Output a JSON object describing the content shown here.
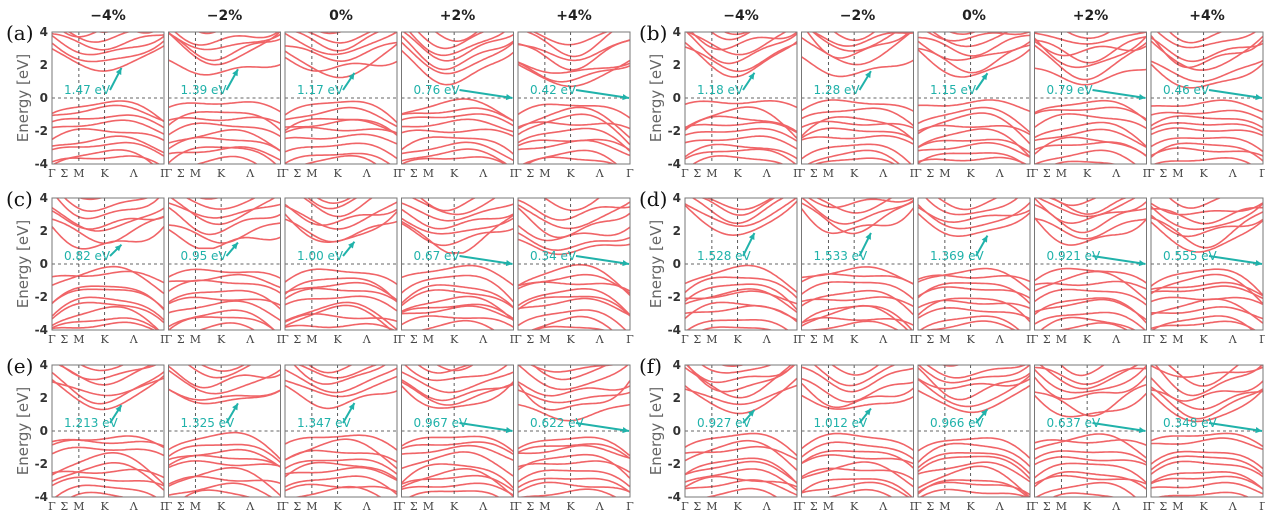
{
  "chart_data": {
    "type": "line",
    "ylabel": "Energy [eV]",
    "ylim": [
      -4,
      4
    ],
    "yticks": [
      "4",
      "2",
      "0",
      "-2",
      "-4"
    ],
    "kpath": [
      "Γ",
      "Σ",
      "M",
      "K",
      "Λ",
      "Γ"
    ],
    "strains": [
      "−4%",
      "−2%",
      "0%",
      "+2%",
      "+4%"
    ],
    "colors": {
      "bands": "#f06467",
      "gap_annotation": "#20b2aa"
    },
    "panels": [
      {
        "label": "(a)",
        "gaps": [
          "1.47 eV",
          "1.39 eV",
          "1.17 eV",
          "0.76 eV",
          "0.42 eV"
        ],
        "gap_values": [
          1.47,
          1.39,
          1.17,
          0.76,
          0.42
        ]
      },
      {
        "label": "(b)",
        "gaps": [
          "1.18 eV",
          "1.28 eV",
          "1.15 eV",
          "0.79 eV",
          "0.46 eV"
        ],
        "gap_values": [
          1.18,
          1.28,
          1.15,
          0.79,
          0.46
        ]
      },
      {
        "label": "(c)",
        "gaps": [
          "0.82 eV",
          "0.95 eV",
          "1.00 eV",
          "0.67 eV",
          "0.34 eV"
        ],
        "gap_values": [
          0.82,
          0.95,
          1.0,
          0.67,
          0.34
        ]
      },
      {
        "label": "(d)",
        "gaps": [
          "1.528 eV",
          "1.533 eV",
          "1.369 eV",
          "0.921 eV",
          "0.555 eV"
        ],
        "gap_values": [
          1.528,
          1.533,
          1.369,
          0.921,
          0.555
        ]
      },
      {
        "label": "(e)",
        "gaps": [
          "1.213 eV",
          "1.325 eV",
          "1.347 eV",
          "0.967 eV",
          "0.622 eV"
        ],
        "gap_values": [
          1.213,
          1.325,
          1.347,
          0.967,
          0.622
        ]
      },
      {
        "label": "(f)",
        "gaps": [
          "0.927 eV",
          "1.012 eV",
          "0.966 eV",
          "0.637 eV",
          "0.348 eV"
        ],
        "gap_values": [
          0.927,
          1.012,
          0.966,
          0.637,
          0.348
        ]
      }
    ]
  }
}
